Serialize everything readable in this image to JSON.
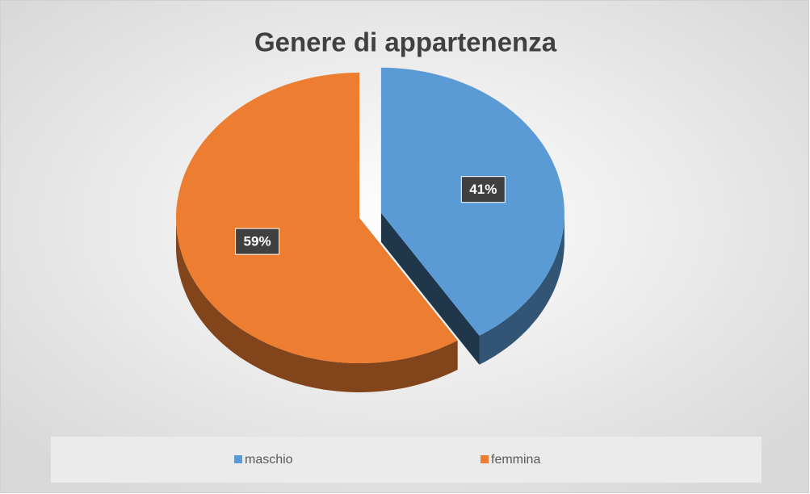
{
  "chart_data": {
    "type": "pie",
    "title": "Genere di appartenenza",
    "categories": [
      "maschio",
      "femmina"
    ],
    "values": [
      41,
      59
    ],
    "value_labels": [
      "41%",
      "59%"
    ],
    "colors": [
      "#5b9bd5",
      "#ed7d31"
    ],
    "legend": "bottom"
  }
}
